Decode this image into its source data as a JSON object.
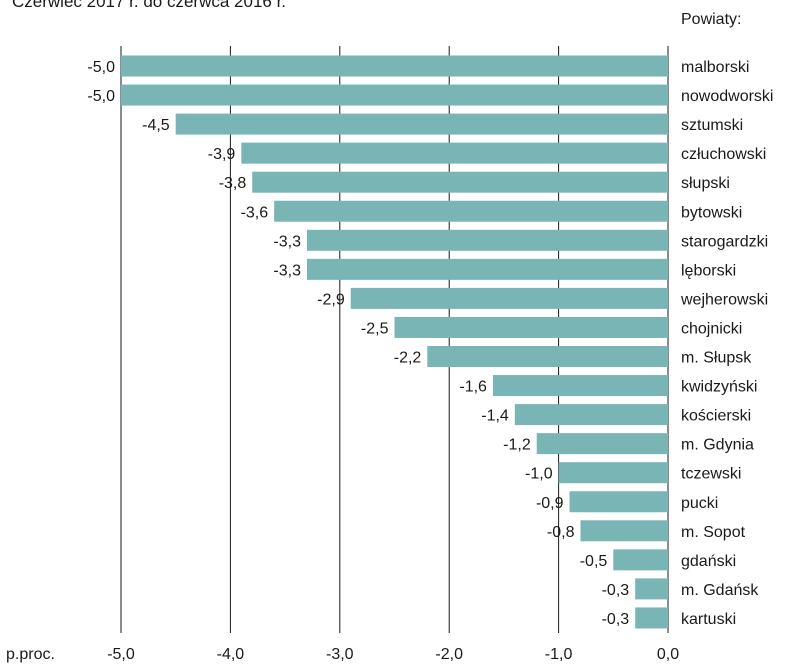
{
  "title": "Czerwiec 2017 r. do czerwca 2016 r.",
  "category_header": "Powiaty:",
  "colors": {
    "bar": "#7ab5b5",
    "grid": "#1a1a1a",
    "text": "#1a1a1a"
  },
  "chart_data": {
    "type": "bar",
    "orientation": "horizontal",
    "title": "Czerwiec 2017 r. do czerwca 2016 r.",
    "xlabel": "p.proc.",
    "xlim": [
      -5.0,
      0.0
    ],
    "xticks": [
      "-5,0",
      "-4,0",
      "-3,0",
      "-2,0",
      "-1,0",
      "0,0"
    ],
    "xtick_values": [
      -5,
      -4,
      -3,
      -2,
      -1,
      0
    ],
    "grid": "vertical",
    "categories": [
      "malborski",
      "nowodworski",
      "sztumski",
      "człuchowski",
      "słupski",
      "bytowski",
      "starogardzki",
      "lęborski",
      "wejherowski",
      "chojnicki",
      "m. Słupsk",
      "kwidzyński",
      "kościerski",
      "m. Gdynia",
      "tczewski",
      "pucki",
      "m. Sopot",
      "gdański",
      "m. Gdańsk",
      "kartuski"
    ],
    "values": [
      -5.0,
      -5.0,
      -4.5,
      -3.9,
      -3.8,
      -3.6,
      -3.3,
      -3.3,
      -2.9,
      -2.5,
      -2.2,
      -1.6,
      -1.4,
      -1.2,
      -1.0,
      -0.9,
      -0.8,
      -0.5,
      -0.3,
      -0.3
    ],
    "value_labels": [
      "-5,0",
      "-5,0",
      "-4,5",
      "-3,9",
      "-3,8",
      "-3,6",
      "-3,3",
      "-3,3",
      "-2,9",
      "-2,5",
      "-2,2",
      "-1,6",
      "-1,4",
      "-1,2",
      "-1,0",
      "-0,9",
      "-0,8",
      "-0,5",
      "-0,3",
      "-0,3"
    ]
  }
}
